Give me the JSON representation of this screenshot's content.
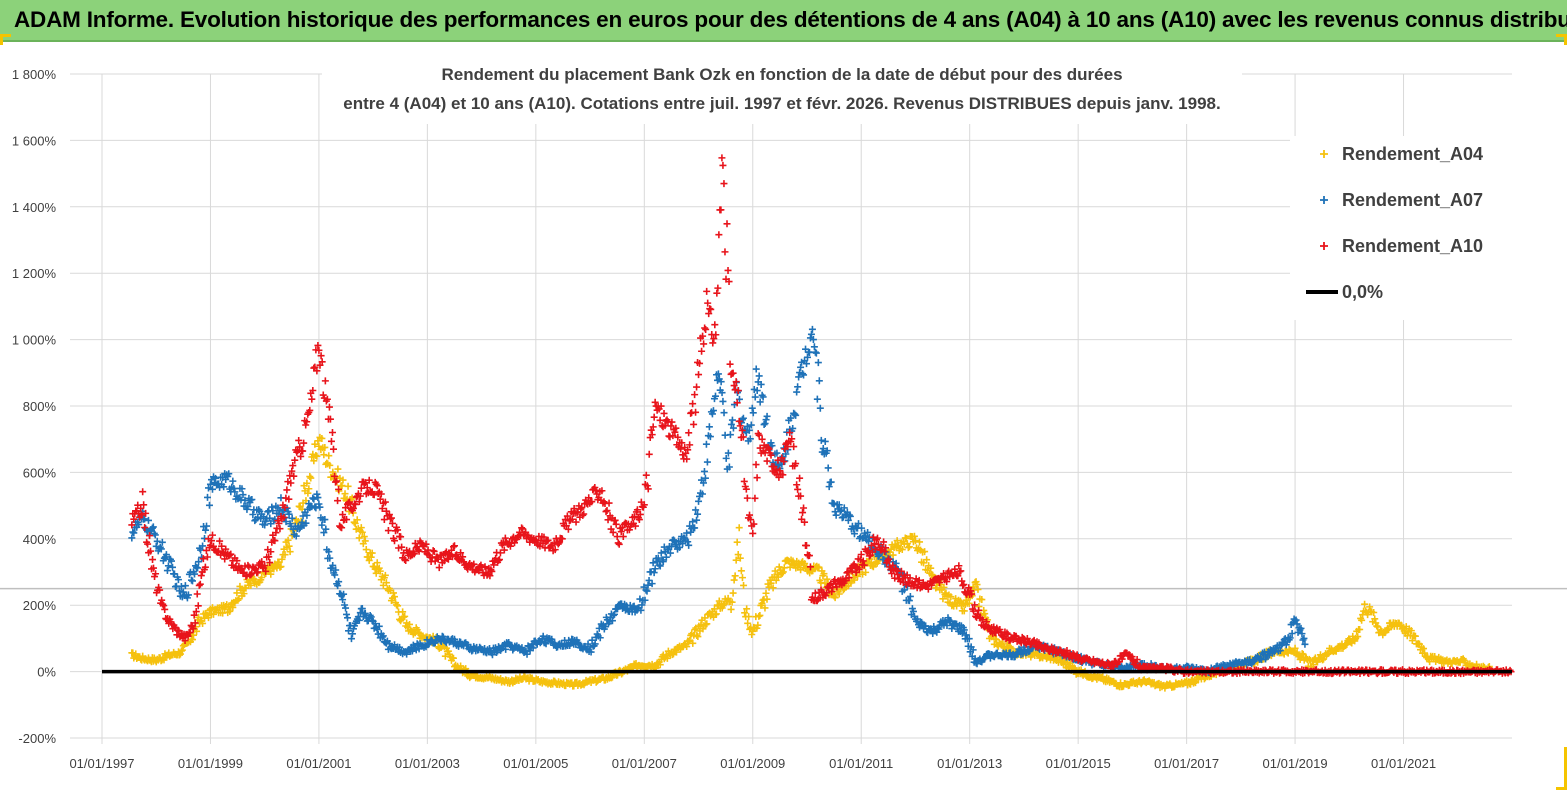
{
  "banner": {
    "title": "ADAM Informe. Evolution historique des performances en euros pour des détentions de 4 ans (A04) à 10 ans (A10) avec les revenus connus distribués"
  },
  "chart_data": {
    "type": "scatter",
    "title_line1": "Rendement du placement Bank Ozk en fonction de la date de début pour des durées",
    "title_line2": "entre 4 (A04) et 10 ans (A10). Cotations entre juil. 1997 et févr. 2026. Revenus DISTRIBUES depuis janv. 1998.",
    "xlabel": "",
    "ylabel": "",
    "ylim": [
      -200,
      1800
    ],
    "xlim": [
      1997.0,
      2023.0
    ],
    "y_ticks": [
      -200,
      0,
      200,
      400,
      600,
      800,
      1000,
      1200,
      1400,
      1600,
      1800
    ],
    "y_tick_labels": [
      "-200%",
      "0%",
      "200%",
      "400%",
      "600%",
      "800%",
      "1 000%",
      "1 200%",
      "1 400%",
      "1 600%",
      "1 800%"
    ],
    "x_ticks": [
      1997,
      1999,
      2001,
      2003,
      2005,
      2007,
      2009,
      2011,
      2013,
      2015,
      2017,
      2019,
      2021
    ],
    "x_tick_labels": [
      "01/01/1997",
      "01/01/1999",
      "01/01/2001",
      "01/01/2003",
      "01/01/2005",
      "01/01/2007",
      "01/01/2009",
      "01/01/2011",
      "01/01/2013",
      "01/01/2015",
      "01/01/2017",
      "01/01/2019",
      "01/01/2021"
    ],
    "legend_position": "top-right",
    "series": [
      {
        "name": "Rendement_A04",
        "color": "#f5c10f",
        "x": [
          1997.55,
          1997.75,
          1998.0,
          1998.25,
          1998.5,
          1998.8,
          1999.0,
          1999.3,
          1999.6,
          2000.0,
          2000.3,
          2000.6,
          2000.85,
          2001.0,
          2001.2,
          2001.5,
          2001.8,
          2002.0,
          2002.3,
          2002.6,
          2002.9,
          2003.2,
          2003.5,
          2003.8,
          2004.2,
          2004.5,
          2004.8,
          2005.1,
          2005.4,
          2005.7,
          2006.0,
          2006.3,
          2006.6,
          2006.9,
          2007.2,
          2007.5,
          2007.8,
          2008.1,
          2008.4,
          2008.6,
          2008.75,
          2008.85,
          2009.0,
          2009.3,
          2009.6,
          2009.9,
          2010.2,
          2010.5,
          2010.8,
          2011.1,
          2011.4,
          2011.7,
          2012.0,
          2012.3,
          2012.6,
          2012.9,
          2013.1,
          2013.4,
          2013.8,
          2014.2,
          2014.6,
          2015.0,
          2015.4,
          2015.8,
          2016.2,
          2016.6,
          2017.0,
          2017.4,
          2017.8,
          2018.2,
          2018.6,
          2019.0,
          2019.3,
          2019.6,
          2019.9,
          2020.1,
          2020.3,
          2020.6,
          2020.9,
          2021.2,
          2021.5,
          2021.8,
          2022.1,
          2022.4,
          2022.6
        ],
        "y": [
          50,
          40,
          35,
          50,
          60,
          150,
          180,
          190,
          250,
          300,
          320,
          450,
          600,
          700,
          620,
          540,
          400,
          330,
          250,
          140,
          110,
          90,
          20,
          -10,
          -20,
          -30,
          -20,
          -30,
          -35,
          -40,
          -30,
          -20,
          0,
          20,
          20,
          60,
          80,
          150,
          200,
          220,
          400,
          190,
          120,
          250,
          330,
          320,
          300,
          230,
          280,
          320,
          350,
          380,
          400,
          280,
          220,
          190,
          250,
          100,
          60,
          50,
          40,
          0,
          -20,
          -40,
          -30,
          -45,
          -35,
          -10,
          10,
          30,
          60,
          60,
          20,
          60,
          80,
          100,
          200,
          120,
          150,
          100,
          40,
          30,
          30,
          10,
          10
        ]
      },
      {
        "name": "Rendement_A07",
        "color": "#1f72b8",
        "x": [
          1997.55,
          1997.75,
          1998.0,
          1998.3,
          1998.5,
          1998.8,
          1999.0,
          1999.3,
          1999.6,
          2000.0,
          2000.3,
          2000.6,
          2000.85,
          2001.0,
          2001.2,
          2001.4,
          2001.6,
          2001.8,
          2002.0,
          2002.3,
          2002.6,
          2002.9,
          2003.2,
          2003.5,
          2003.8,
          2004.2,
          2004.5,
          2004.8,
          2005.1,
          2005.4,
          2005.7,
          2006.0,
          2006.3,
          2006.6,
          2006.9,
          2007.2,
          2007.5,
          2007.8,
          2008.0,
          2008.2,
          2008.35,
          2008.45,
          2008.55,
          2008.7,
          2008.9,
          2009.1,
          2009.3,
          2009.5,
          2009.7,
          2009.9,
          2010.1,
          2010.3,
          2010.5,
          2010.8,
          2011.1,
          2011.4,
          2011.7,
          2012.0,
          2012.3,
          2012.6,
          2012.9,
          2013.1,
          2013.4,
          2013.8,
          2014.2,
          2014.6,
          2015.0,
          2015.4,
          2015.8,
          2016.2,
          2016.6,
          2017.0,
          2017.4,
          2017.8,
          2018.2,
          2018.6,
          2018.8,
          2019.0,
          2019.2
        ],
        "y": [
          420,
          460,
          400,
          300,
          220,
          350,
          560,
          580,
          520,
          450,
          500,
          420,
          500,
          520,
          340,
          250,
          100,
          180,
          150,
          80,
          60,
          80,
          100,
          90,
          70,
          60,
          80,
          60,
          100,
          80,
          90,
          70,
          150,
          200,
          180,
          320,
          380,
          400,
          500,
          700,
          900,
          800,
          600,
          850,
          700,
          900,
          700,
          600,
          750,
          900,
          1050,
          700,
          500,
          450,
          400,
          350,
          300,
          150,
          120,
          150,
          120,
          30,
          50,
          50,
          80,
          60,
          40,
          20,
          10,
          20,
          10,
          10,
          0,
          20,
          30,
          60,
          80,
          150,
          90
        ]
      },
      {
        "name": "Rendement_A10",
        "color": "#e8141b",
        "x": [
          1997.55,
          1997.75,
          1997.95,
          1998.1,
          1998.25,
          1998.4,
          1998.55,
          1998.7,
          1998.85,
          1999.0,
          1999.3,
          1999.6,
          2000.0,
          2000.3,
          2000.5,
          2000.7,
          2000.85,
          2001.0,
          2001.1,
          2001.25,
          2001.4,
          2001.6,
          2001.8,
          2002.0,
          2002.3,
          2002.6,
          2002.9,
          2003.2,
          2003.5,
          2003.8,
          2004.1,
          2004.4,
          2004.7,
          2005.0,
          2005.3,
          2005.6,
          2005.9,
          2006.2,
          2006.5,
          2006.8,
          2007.0,
          2007.2,
          2007.4,
          2007.6,
          2007.8,
          2008.0,
          2008.15,
          2008.3,
          2008.45,
          2008.6,
          2008.75,
          2008.9,
          2009.0,
          2009.1,
          2009.3,
          2009.5,
          2009.7,
          2009.9,
          2010.1,
          2010.4,
          2010.7,
          2011.0,
          2011.3,
          2011.6,
          2011.9,
          2012.2,
          2012.5,
          2012.8,
          2013.0,
          2013.2,
          2013.5,
          2013.8,
          2014.1,
          2014.4,
          2014.7,
          2015.0,
          2015.3,
          2015.6,
          2015.9,
          2016.2,
          2016.6,
          2017.0,
          2017.5,
          2018.0,
          2018.5,
          2019.0,
          2019.5,
          2020.0,
          2020.5,
          2021.0,
          2021.5,
          2022.0,
          2022.5,
          2023.0
        ],
        "y": [
          450,
          500,
          300,
          200,
          150,
          120,
          100,
          150,
          300,
          400,
          350,
          300,
          320,
          450,
          600,
          700,
          800,
          1000,
          850,
          700,
          450,
          500,
          550,
          560,
          450,
          350,
          380,
          330,
          360,
          320,
          300,
          380,
          420,
          400,
          380,
          450,
          500,
          550,
          400,
          450,
          500,
          800,
          750,
          700,
          650,
          900,
          1100,
          1000,
          1550,
          900,
          800,
          500,
          400,
          700,
          650,
          600,
          700,
          500,
          220,
          250,
          280,
          330,
          400,
          300,
          270,
          260,
          280,
          300,
          230,
          150,
          120,
          100,
          90,
          70,
          60,
          40,
          30,
          20,
          50,
          10,
          10,
          0,
          0,
          0,
          0,
          0,
          0,
          0,
          0,
          0,
          0,
          0,
          0,
          0
        ]
      }
    ],
    "legend": {
      "items": [
        {
          "label": "Rendement_A04",
          "color": "#f5c10f",
          "marker": "+"
        },
        {
          "label": "Rendement_A07",
          "color": "#1f72b8",
          "marker": "+"
        },
        {
          "label": "Rendement_A10",
          "color": "#e8141b",
          "marker": "+"
        },
        {
          "label": "0,0%",
          "color": "#000000",
          "marker": "line"
        }
      ]
    }
  }
}
